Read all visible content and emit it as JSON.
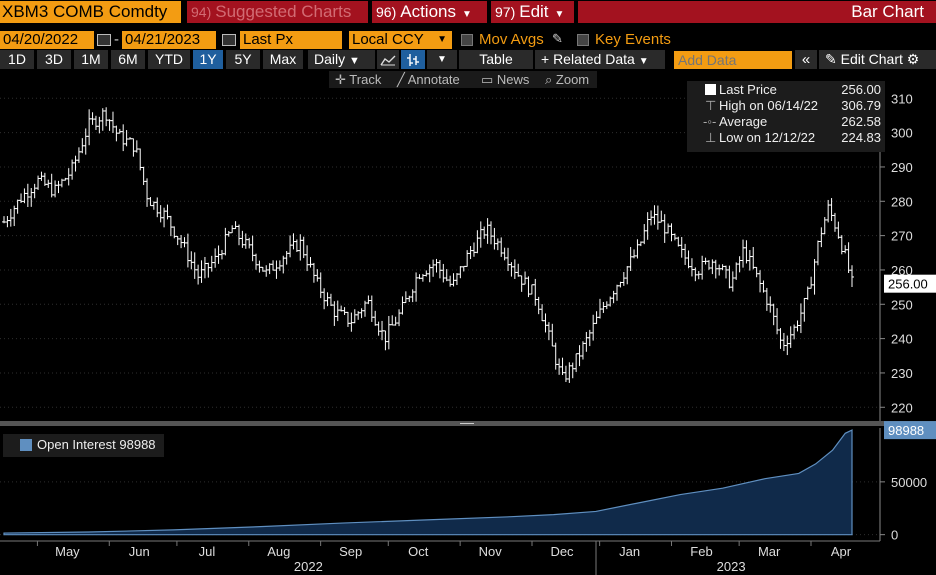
{
  "header": {
    "ticker": "XBM3 COMB Comdty",
    "suggested": {
      "num": "94)",
      "label": "Suggested Charts"
    },
    "actions": {
      "num": "96)",
      "label": "Actions"
    },
    "edit": {
      "num": "97)",
      "label": "Edit"
    },
    "chart_kind": "Bar Chart"
  },
  "controls": {
    "start_date": "04/20/2022",
    "end_date": "04/21/2023",
    "dash": "-",
    "field": "Last Px",
    "currency": "Local CCY",
    "mov_avgs": "Mov Avgs",
    "key_events": "Key Events",
    "periods": [
      "1D",
      "3D",
      "1M",
      "6M",
      "YTD",
      "1Y",
      "5Y",
      "Max"
    ],
    "selected_period": "1Y",
    "frequency": "Daily",
    "table": "Table",
    "related_data": "+ Related Data",
    "add_data_placeholder": "Add Data",
    "edit_chart": "Edit Chart"
  },
  "tools": {
    "track": "Track",
    "annotate": "Annotate",
    "news": "News",
    "zoom": "Zoom"
  },
  "legend": {
    "last_price_label": "Last Price",
    "last_price": "256.00",
    "high_label": "High on 06/14/22",
    "high": "306.79",
    "average_label": "Average",
    "average": "262.58",
    "low_label": "Low on 12/12/22",
    "low": "224.83"
  },
  "oi_legend": {
    "label": "Open Interest 98988"
  },
  "colors": {
    "accent": "#f39c12",
    "menu": "#a3121f",
    "area": "#102a4a",
    "area_line": "#5f8fc0",
    "select": "#1f5f9e"
  },
  "chart_data": [
    {
      "type": "bar",
      "subtype": "ohlc",
      "series_name": "Last Price",
      "ylim": [
        216,
        313
      ],
      "yticks": [
        220,
        230,
        240,
        250,
        260,
        270,
        280,
        290,
        300,
        310
      ],
      "last_value": 256.0,
      "last_value_label": "256.00",
      "points": [
        [
          2022.3,
          274
        ],
        [
          2022.32,
          281
        ],
        [
          2022.34,
          286
        ],
        [
          2022.36,
          283
        ],
        [
          2022.38,
          289
        ],
        [
          2022.4,
          302
        ],
        [
          2022.42,
          306
        ],
        [
          2022.435,
          299
        ],
        [
          2022.455,
          296
        ],
        [
          2022.47,
          281
        ],
        [
          2022.49,
          276
        ],
        [
          2022.51,
          268
        ],
        [
          2022.53,
          258
        ],
        [
          2022.55,
          263
        ],
        [
          2022.57,
          272
        ],
        [
          2022.59,
          266
        ],
        [
          2022.61,
          259
        ],
        [
          2022.63,
          264
        ],
        [
          2022.65,
          268
        ],
        [
          2022.67,
          256
        ],
        [
          2022.69,
          248
        ],
        [
          2022.71,
          245
        ],
        [
          2022.73,
          251
        ],
        [
          2022.75,
          240
        ],
        [
          2022.77,
          248
        ],
        [
          2022.79,
          259
        ],
        [
          2022.81,
          262
        ],
        [
          2022.83,
          255
        ],
        [
          2022.85,
          265
        ],
        [
          2022.87,
          272
        ],
        [
          2022.89,
          266
        ],
        [
          2022.91,
          258
        ],
        [
          2022.93,
          252
        ],
        [
          2022.945,
          240
        ],
        [
          2022.96,
          228
        ],
        [
          2022.975,
          233
        ],
        [
          2022.99,
          240
        ],
        [
          2023.01,
          250
        ],
        [
          2023.03,
          258
        ],
        [
          2023.05,
          266
        ],
        [
          2023.065,
          276
        ],
        [
          2023.08,
          273
        ],
        [
          2023.1,
          265
        ],
        [
          2023.12,
          260
        ],
        [
          2023.14,
          263
        ],
        [
          2023.16,
          256
        ],
        [
          2023.175,
          266
        ],
        [
          2023.19,
          258
        ],
        [
          2023.205,
          250
        ],
        [
          2023.22,
          238
        ],
        [
          2023.235,
          243
        ],
        [
          2023.25,
          252
        ],
        [
          2023.265,
          270
        ],
        [
          2023.275,
          278
        ],
        [
          2023.285,
          272
        ],
        [
          2023.295,
          264
        ],
        [
          2023.303,
          256
        ]
      ]
    },
    {
      "type": "area",
      "series_name": "Open Interest",
      "ylim": [
        -6000,
        101000
      ],
      "yticks": [
        0,
        50000
      ],
      "last_value": 98988,
      "last_value_label": "98988",
      "points": [
        [
          2022.3,
          1500
        ],
        [
          2022.4,
          2500
        ],
        [
          2022.5,
          4500
        ],
        [
          2022.6,
          7500
        ],
        [
          2022.7,
          11000
        ],
        [
          2022.8,
          14000
        ],
        [
          2022.9,
          17000
        ],
        [
          2022.95,
          19000
        ],
        [
          2023.0,
          22000
        ],
        [
          2023.05,
          30000
        ],
        [
          2023.1,
          38000
        ],
        [
          2023.15,
          44000
        ],
        [
          2023.2,
          53000
        ],
        [
          2023.24,
          58000
        ],
        [
          2023.26,
          67000
        ],
        [
          2023.28,
          80000
        ],
        [
          2023.295,
          96000
        ],
        [
          2023.303,
          98988
        ]
      ]
    }
  ],
  "xaxis": {
    "months": [
      {
        "label": "May",
        "x": 2022.375
      },
      {
        "label": "Jun",
        "x": 2022.46
      },
      {
        "label": "Jul",
        "x": 2022.54
      },
      {
        "label": "Aug",
        "x": 2022.625
      },
      {
        "label": "Sep",
        "x": 2022.71
      },
      {
        "label": "Oct",
        "x": 2022.79
      },
      {
        "label": "Nov",
        "x": 2022.875
      },
      {
        "label": "Dec",
        "x": 2022.96
      },
      {
        "label": "Jan",
        "x": 2023.04
      },
      {
        "label": "Feb",
        "x": 2023.125
      },
      {
        "label": "Mar",
        "x": 2023.205
      },
      {
        "label": "Apr",
        "x": 2023.29
      }
    ],
    "years": [
      {
        "label": "2022",
        "x": 2022.66
      },
      {
        "label": "2023",
        "x": 2023.16
      }
    ]
  }
}
